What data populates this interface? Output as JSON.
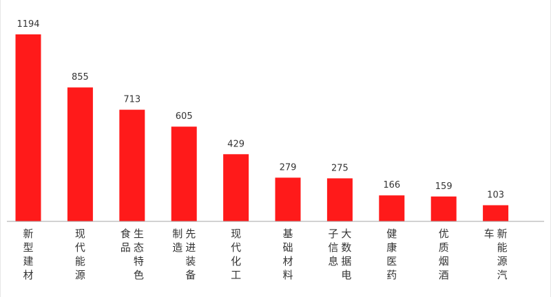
{
  "chart_data": {
    "type": "bar",
    "categories": [
      "新型建材",
      "现代能源",
      "生态特色食品",
      "先进装备制造",
      "现代化工",
      "基础材料",
      "大数据电子信息",
      "健康医药",
      "优质烟酒",
      "新能源汽车"
    ],
    "label_columns": [
      [
        "新型建材"
      ],
      [
        "现代能源"
      ],
      [
        "生态特色",
        "食品"
      ],
      [
        "先进装备",
        "制造"
      ],
      [
        "现代化工"
      ],
      [
        "基础材料"
      ],
      [
        "大数据电",
        "子信息"
      ],
      [
        "健康医药"
      ],
      [
        "优质烟酒"
      ],
      [
        "新能源汽",
        "车"
      ]
    ],
    "values": [
      1194,
      855,
      713,
      605,
      429,
      279,
      275,
      166,
      159,
      103
    ],
    "ylim": [
      0,
      1194
    ],
    "title": "",
    "xlabel": "",
    "ylabel": "",
    "grid": false,
    "bar_color": "#ff1a1a",
    "axis_color": "#a6a6a6",
    "label_color": "#333333"
  }
}
